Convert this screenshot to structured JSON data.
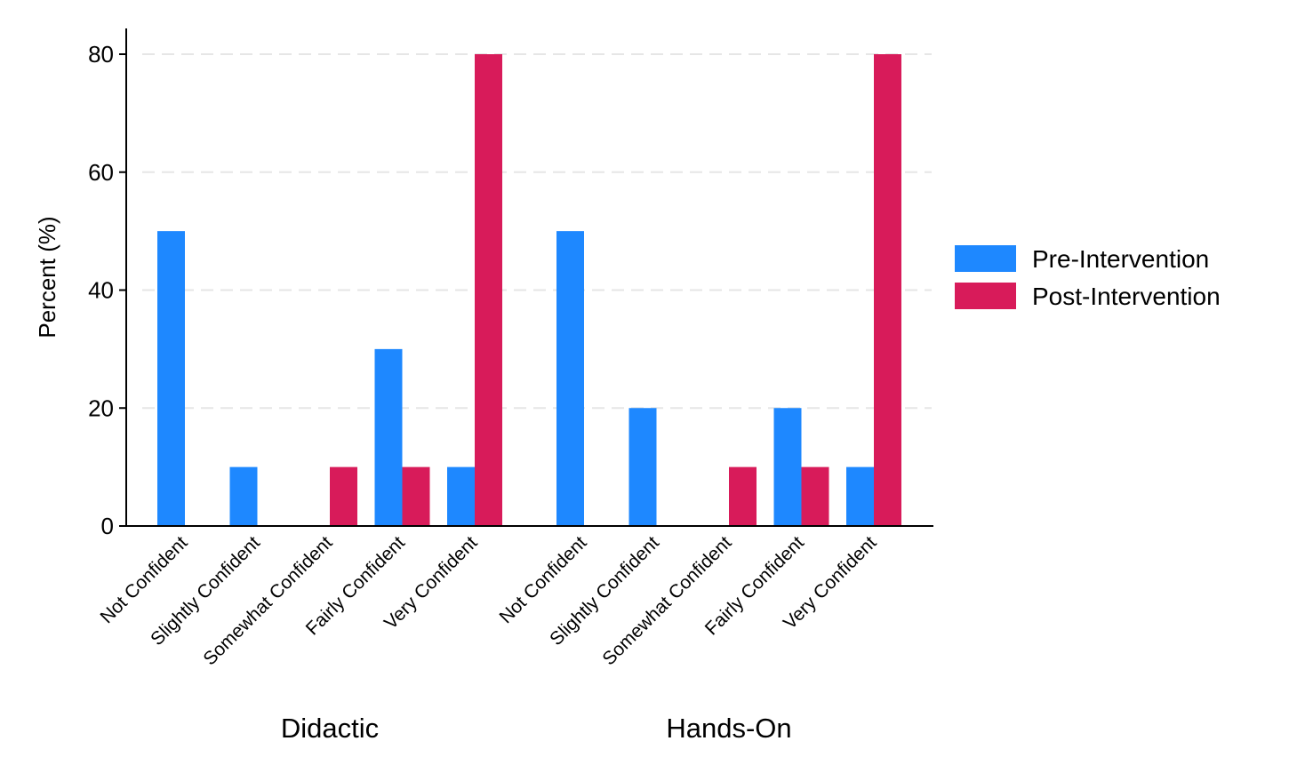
{
  "chart_data": {
    "type": "bar",
    "ylabel": "Percent (%)",
    "ylim": [
      0,
      85
    ],
    "yticks": [
      0,
      20,
      40,
      60,
      80
    ],
    "grid": "horizontal dashed",
    "legend_position": "right",
    "groups": [
      {
        "label": "Didactic",
        "categories": [
          "Not Confident",
          "Slightly Confident",
          "Somewhat Confident",
          "Fairly Confident",
          "Very Confident"
        ]
      },
      {
        "label": "Hands-On",
        "categories": [
          "Not Confident",
          "Slightly Confident",
          "Somewhat Confident",
          "Fairly Confident",
          "Very Confident"
        ]
      }
    ],
    "series": [
      {
        "name": "Pre-Intervention",
        "color": "#1e88ff",
        "values": [
          [
            50,
            10,
            0,
            30,
            10
          ],
          [
            50,
            20,
            0,
            20,
            10
          ]
        ]
      },
      {
        "name": "Post-Intervention",
        "color": "#d81b5a",
        "values": [
          [
            0,
            0,
            10,
            10,
            80
          ],
          [
            0,
            0,
            10,
            10,
            80
          ]
        ]
      }
    ]
  }
}
